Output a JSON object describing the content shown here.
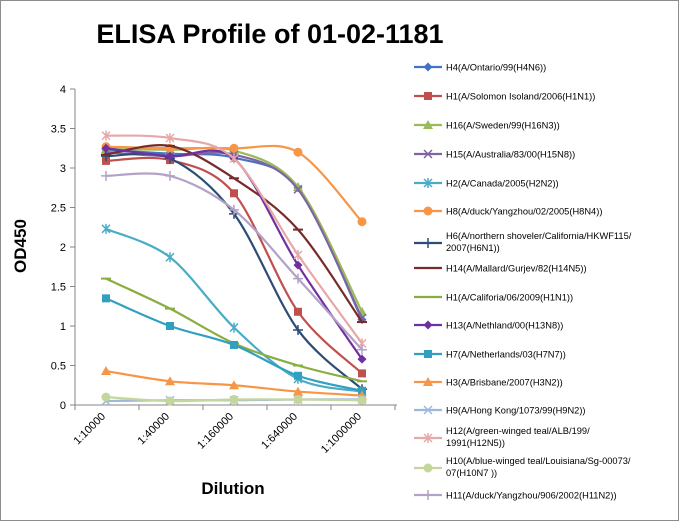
{
  "chart_data": {
    "type": "line",
    "title": "ELISA Profile of 01-02-1181",
    "xlabel": "Dilution",
    "ylabel": "OD450",
    "categories": [
      "1:10000",
      "1:40000",
      "1:160000",
      "1:640000",
      "1:1000000"
    ],
    "ylim": [
      0,
      4
    ],
    "yticks": [
      "0",
      "0.5",
      "1",
      "1.5",
      "2",
      "2.5",
      "3",
      "3.5",
      "4"
    ],
    "grid": false,
    "legend_position": "right",
    "series": [
      {
        "name": "H4(A/Ontario/99(H4N6))",
        "color": "#4472C4",
        "marker": "diamond",
        "values": [
          3.23,
          3.18,
          3.13,
          2.75,
          1.08
        ]
      },
      {
        "name": "H1(A/Solomon Isoland/2006(H1N1))",
        "color": "#C0504D",
        "marker": "square",
        "values": [
          3.09,
          3.1,
          2.68,
          1.18,
          0.4
        ]
      },
      {
        "name": "H16(A/Sweden/99(H16N3))",
        "color": "#9BBB59",
        "marker": "triangle",
        "values": [
          3.24,
          3.23,
          3.22,
          2.76,
          1.18
        ]
      },
      {
        "name": "H15(A/Australia/83/00(H15N8))",
        "color": "#8064A2",
        "marker": "x",
        "values": [
          3.2,
          3.15,
          3.17,
          2.73,
          1.1
        ]
      },
      {
        "name": "H2(A/Canada/2005(H2N2))",
        "color": "#4BACC6",
        "marker": "star",
        "values": [
          2.23,
          1.87,
          0.98,
          0.33,
          0.17
        ]
      },
      {
        "name": "H8(A/duck/Yangzhou/02/2005(H8N4))",
        "color": "#F79646",
        "marker": "circle",
        "values": [
          3.27,
          3.25,
          3.25,
          3.2,
          2.32
        ]
      },
      {
        "name": "H6(A/northern shoveler/California/HKWF115/2007(H6N1))",
        "color": "#2C4D75",
        "marker": "plus",
        "values": [
          3.15,
          3.12,
          2.42,
          0.95,
          0.2
        ]
      },
      {
        "name": "H14(A/Mallard/Gurjev/82(H14N5))",
        "color": "#772C2A",
        "marker": "dash",
        "values": [
          3.17,
          3.28,
          2.87,
          2.22,
          1.05
        ]
      },
      {
        "name": "H1(A/Califoria/06/2009(H1N1))",
        "color": "#8AAD3F",
        "marker": "dash",
        "values": [
          1.6,
          1.22,
          0.78,
          0.5,
          0.3
        ]
      },
      {
        "name": "H13(A/Nethland/00(H13N8))",
        "color": "#7030A0",
        "marker": "diamond",
        "values": [
          3.25,
          3.15,
          3.12,
          1.77,
          0.58
        ]
      },
      {
        "name": "H7(A/Netherlands/03(H7N7))",
        "color": "#31A0C0",
        "marker": "square",
        "values": [
          1.35,
          1.0,
          0.76,
          0.37,
          0.18
        ]
      },
      {
        "name": "H3(A/Brisbane/2007(H3N2))",
        "color": "#F79646",
        "marker": "triangle",
        "values": [
          0.43,
          0.3,
          0.25,
          0.17,
          0.12
        ]
      },
      {
        "name": "H9(A/Hong Kong/1073/99(H9N2))",
        "color": "#9DB8DA",
        "marker": "x",
        "values": [
          0.05,
          0.06,
          0.06,
          0.07,
          0.07
        ]
      },
      {
        "name": "H12(A/green-winged teal/ALB/199/1991(H12N5))",
        "color": "#E6A8A8",
        "marker": "star",
        "values": [
          3.41,
          3.38,
          3.12,
          1.9,
          0.78
        ]
      },
      {
        "name": "H10(A/blue-winged teal/Louisiana/Sg-00073/07(H10N7 ))",
        "color": "#C3D69B",
        "marker": "circle",
        "values": [
          0.1,
          0.05,
          0.07,
          0.07,
          0.06
        ]
      },
      {
        "name": "H11(A/duck/Yangzhou/906/2002(H11N2))",
        "color": "#B3A2C7",
        "marker": "plus",
        "values": [
          2.9,
          2.9,
          2.47,
          1.6,
          0.7
        ]
      }
    ]
  }
}
